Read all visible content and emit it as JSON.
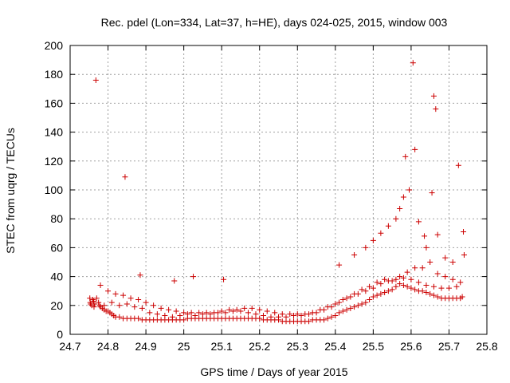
{
  "chart_data": {
    "type": "scatter",
    "title": "Rec. pdel (Lon=334, Lat=37, h=HE), days 024-025, 2015, window 003",
    "xlabel": "GPS time / Days of year 2015",
    "ylabel": "STEC from uqrg / TECUs",
    "xlim": [
      24.7,
      25.8
    ],
    "ylim": [
      0,
      200
    ],
    "xticks": [
      24.7,
      24.8,
      24.9,
      25.0,
      25.1,
      25.2,
      25.3,
      25.4,
      25.5,
      25.6,
      25.7,
      25.8
    ],
    "xtick_labels": [
      "24.7",
      "24.8",
      "24.9",
      "25",
      "25.1",
      "25.2",
      "25.3",
      "25.4",
      "25.5",
      "25.6",
      "25.7",
      "25.8"
    ],
    "yticks": [
      0,
      20,
      40,
      60,
      80,
      100,
      120,
      140,
      160,
      180,
      200
    ],
    "ytick_labels": [
      "0",
      "20",
      "40",
      "60",
      "80",
      "100",
      "120",
      "140",
      "160",
      "180",
      "200"
    ],
    "grid": true,
    "marker": "+",
    "color": "#cc0000",
    "series": [
      {
        "name": "STEC",
        "x": [
          24.752,
          24.753,
          24.754,
          24.757,
          24.76,
          24.762,
          24.763,
          24.765,
          24.77,
          24.775,
          24.778,
          24.78,
          24.785,
          24.79,
          24.795,
          24.8,
          24.805,
          24.81,
          24.815,
          24.82,
          24.83,
          24.84,
          24.85,
          24.86,
          24.87,
          24.88,
          24.89,
          24.9,
          24.91,
          24.92,
          24.93,
          24.94,
          24.95,
          24.96,
          24.97,
          24.98,
          24.99,
          25.0,
          25.01,
          25.02,
          25.03,
          25.04,
          25.05,
          25.06,
          25.07,
          25.08,
          25.09,
          25.1,
          25.11,
          25.12,
          25.13,
          25.14,
          25.15,
          25.16,
          25.17,
          25.18,
          25.19,
          25.2,
          25.21,
          25.22,
          25.23,
          25.24,
          25.25,
          25.26,
          25.27,
          25.28,
          25.29,
          25.3,
          25.31,
          25.32,
          25.33,
          25.34,
          25.35,
          25.36,
          25.37,
          25.38,
          25.39,
          25.4,
          25.41,
          25.42,
          25.43,
          25.44,
          25.45,
          25.46,
          25.47,
          25.48,
          25.49,
          25.5,
          25.51,
          25.52,
          25.53,
          25.54,
          25.55,
          25.56,
          25.57,
          25.58,
          25.59,
          25.6,
          25.61,
          25.62,
          25.63,
          25.64,
          25.65,
          25.66,
          25.67,
          25.68,
          25.69,
          25.7,
          25.71,
          25.72,
          25.73,
          25.735,
          24.78,
          24.8,
          24.82,
          24.84,
          24.86,
          24.88,
          24.9,
          24.92,
          24.94,
          24.96,
          24.98,
          25.0,
          25.02,
          25.04,
          25.06,
          25.08,
          25.1,
          25.12,
          25.14,
          25.16,
          25.18,
          25.2,
          25.22,
          25.24,
          25.26,
          25.28,
          25.3,
          25.32,
          25.34,
          25.36,
          25.38,
          25.4,
          25.42,
          25.44,
          25.46,
          25.48,
          25.5,
          25.52,
          25.54,
          25.56,
          25.58,
          25.6,
          25.62,
          25.64,
          25.66,
          25.68,
          25.7,
          25.72,
          24.79,
          24.81,
          24.83,
          24.85,
          24.87,
          24.89,
          24.91,
          24.93,
          24.95,
          24.97,
          24.99,
          25.01,
          25.03,
          25.05,
          25.07,
          25.09,
          25.11,
          25.13,
          25.15,
          25.17,
          25.19,
          25.21,
          25.23,
          25.25,
          25.27,
          25.29,
          25.31,
          25.33,
          25.35,
          25.37,
          25.39,
          25.41,
          25.43,
          25.45,
          25.47,
          25.49,
          25.51,
          25.53,
          25.55,
          25.57,
          25.59,
          25.61,
          25.63,
          25.65,
          25.67,
          25.69,
          25.71,
          25.73,
          24.768,
          24.845,
          24.885,
          24.975,
          25.025,
          25.105,
          25.41,
          25.45,
          25.48,
          25.5,
          25.52,
          25.54,
          25.56,
          25.57,
          25.58,
          25.585,
          25.595,
          25.605,
          25.61,
          25.62,
          25.635,
          25.64,
          25.655,
          25.66,
          25.665,
          25.67,
          25.69,
          25.71,
          25.725,
          25.738,
          25.74
        ],
        "y": [
          25,
          22,
          21,
          20,
          24,
          23,
          19,
          21,
          25,
          22,
          20,
          19,
          18,
          17,
          16,
          16,
          15,
          14,
          13,
          12,
          12,
          11,
          11,
          11,
          11,
          11,
          10,
          10,
          10,
          10,
          10,
          10,
          10,
          10,
          10,
          10,
          10,
          10,
          11,
          11,
          11,
          11,
          11,
          11,
          11,
          11,
          11,
          11,
          11,
          11,
          11,
          11,
          11,
          11,
          11,
          11,
          11,
          11,
          10,
          10,
          10,
          10,
          10,
          9,
          9,
          9,
          9,
          9,
          9,
          9,
          9,
          10,
          10,
          10,
          10,
          11,
          12,
          13,
          15,
          16,
          17,
          18,
          19,
          20,
          21,
          22,
          24,
          26,
          27,
          28,
          29,
          30,
          31,
          33,
          35,
          34,
          33,
          32,
          31,
          30,
          30,
          29,
          28,
          27,
          26,
          25,
          25,
          25,
          25,
          25,
          25,
          26,
          34,
          30,
          28,
          27,
          25,
          24,
          22,
          20,
          18,
          17,
          16,
          15,
          15,
          15,
          15,
          15,
          16,
          17,
          17,
          18,
          18,
          17,
          16,
          15,
          14,
          14,
          14,
          14,
          15,
          17,
          19,
          21,
          24,
          26,
          28,
          30,
          32,
          35,
          37,
          38,
          39,
          38,
          36,
          34,
          33,
          32,
          32,
          33,
          20,
          22,
          20,
          21,
          19,
          18,
          15,
          14,
          13,
          12,
          13,
          14,
          13,
          14,
          14,
          15,
          15,
          16,
          16,
          15,
          14,
          13,
          12,
          12,
          12,
          13,
          13,
          14,
          15,
          17,
          19,
          22,
          25,
          28,
          31,
          33,
          36,
          38,
          37,
          40,
          43,
          46,
          46,
          50,
          42,
          40,
          38,
          36,
          176,
          109,
          41,
          37,
          40,
          38,
          48,
          55,
          60,
          65,
          70,
          75,
          80,
          87,
          95,
          123,
          100,
          188,
          128,
          78,
          68,
          60,
          98,
          165,
          156,
          69,
          53,
          50,
          117,
          71,
          55
        ]
      }
    ]
  }
}
